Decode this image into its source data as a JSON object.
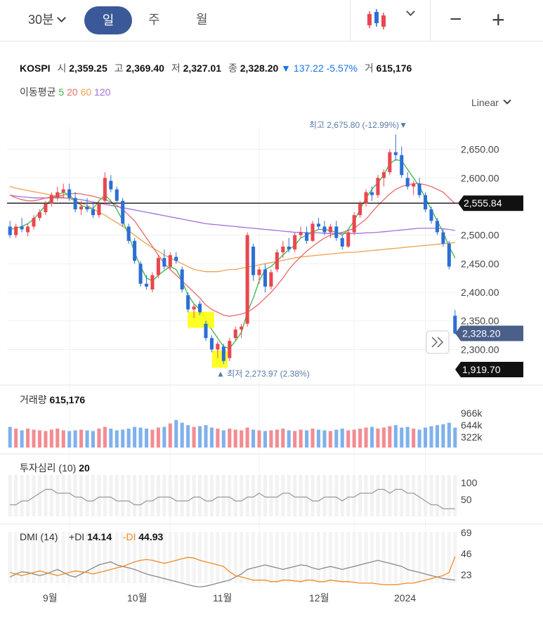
{
  "toolbar": {
    "timeframe": "30분",
    "tabs": [
      "일",
      "주",
      "월"
    ],
    "active_tab": "일",
    "chart_icon": "candlestick-icon",
    "zoom_out": "−",
    "zoom_in": "+"
  },
  "quote": {
    "symbol": "KOSPI",
    "open_label": "시",
    "open": "2,359.25",
    "high_label": "고",
    "high": "2,369.40",
    "low_label": "저",
    "low": "2,327.01",
    "close_label": "종",
    "close": "2,328.20",
    "change_arrow": "▼",
    "change": "137.22",
    "change_pct": "-5.57%",
    "volume_label": "거",
    "volume": "615,176"
  },
  "moving_average": {
    "label": "이동평균",
    "periods": [
      {
        "value": "5",
        "color": "#3bb54a"
      },
      {
        "value": "20",
        "color": "#e86a6a"
      },
      {
        "value": "60",
        "color": "#f0a050"
      },
      {
        "value": "120",
        "color": "#a070e0"
      }
    ]
  },
  "scale_mode": "Linear",
  "price_axis": {
    "ticks": [
      "2,650.00",
      "2,600.00",
      "2,500.00",
      "2,450.00",
      "2,400.00",
      "2,350.00",
      "2,300.00"
    ],
    "hline_value": "2,555.84",
    "current_value": "2,328.20",
    "low_marker": "1,919.70"
  },
  "annotations": {
    "high": "최고 2,675.80 (-12.99%)",
    "low": "최저 2,273.97 (2.38%)"
  },
  "volume_panel": {
    "label": "거래량",
    "value": "615,176",
    "ticks": [
      "966k",
      "644k",
      "322k"
    ]
  },
  "psychology_panel": {
    "label": "투자심리 (10)",
    "value": "20",
    "ticks": [
      "100",
      "50"
    ]
  },
  "dmi_panel": {
    "label": "DMI (14)",
    "plus_label": "+DI",
    "plus_value": "14.14",
    "minus_label": "-DI",
    "minus_value": "44.93",
    "ticks": [
      "69",
      "46",
      "23"
    ]
  },
  "x_axis": [
    "9월",
    "10월",
    "11월",
    "12월",
    "2024"
  ],
  "colors": {
    "up": "#e8474e",
    "down": "#2b6fd6",
    "accent": "#3b5998",
    "ma5": "#3bb54a",
    "ma20": "#e86a6a",
    "ma60": "#f0a050",
    "ma120": "#a070e0",
    "vol_up": "#f28c91",
    "vol_down": "#7fb1ec"
  },
  "chart_data": {
    "type": "candlestick",
    "ylim": [
      2260,
      2690
    ],
    "hline": 2555.84,
    "candles": [
      [
        2515,
        2525,
        2495,
        2500
      ],
      [
        2500,
        2520,
        2495,
        2515
      ],
      [
        2515,
        2530,
        2505,
        2510
      ],
      [
        2505,
        2520,
        2498,
        2515
      ],
      [
        2515,
        2535,
        2510,
        2530
      ],
      [
        2530,
        2545,
        2525,
        2540
      ],
      [
        2540,
        2560,
        2535,
        2555
      ],
      [
        2555,
        2575,
        2550,
        2570
      ],
      [
        2565,
        2585,
        2560,
        2575
      ],
      [
        2575,
        2590,
        2565,
        2580
      ],
      [
        2580,
        2590,
        2560,
        2565
      ],
      [
        2565,
        2575,
        2540,
        2545
      ],
      [
        2545,
        2560,
        2535,
        2550
      ],
      [
        2550,
        2565,
        2540,
        2545
      ],
      [
        2545,
        2555,
        2530,
        2535
      ],
      [
        2535,
        2560,
        2530,
        2555
      ],
      [
        2560,
        2610,
        2555,
        2600
      ],
      [
        2595,
        2605,
        2575,
        2580
      ],
      [
        2580,
        2585,
        2555,
        2560
      ],
      [
        2560,
        2565,
        2515,
        2520
      ],
      [
        2515,
        2520,
        2485,
        2490
      ],
      [
        2490,
        2495,
        2450,
        2455
      ],
      [
        2450,
        2455,
        2410,
        2415
      ],
      [
        2415,
        2430,
        2405,
        2410
      ],
      [
        2405,
        2435,
        2400,
        2430
      ],
      [
        2430,
        2465,
        2425,
        2460
      ],
      [
        2460,
        2475,
        2440,
        2445
      ],
      [
        2445,
        2470,
        2440,
        2465
      ],
      [
        2462,
        2470,
        2450,
        2455
      ],
      [
        2440,
        2445,
        2400,
        2405
      ],
      [
        2395,
        2400,
        2365,
        2370
      ],
      [
        2370,
        2380,
        2355,
        2375
      ],
      [
        2380,
        2385,
        2360,
        2365
      ],
      [
        2345,
        2350,
        2315,
        2320
      ],
      [
        2320,
        2325,
        2295,
        2300
      ],
      [
        2300,
        2315,
        2285,
        2310
      ],
      [
        2305,
        2310,
        2275,
        2280
      ],
      [
        2285,
        2320,
        2280,
        2315
      ],
      [
        2320,
        2340,
        2315,
        2335
      ],
      [
        2335,
        2345,
        2320,
        2340
      ],
      [
        2345,
        2505,
        2340,
        2500
      ],
      [
        2480,
        2485,
        2420,
        2430
      ],
      [
        2430,
        2445,
        2415,
        2440
      ],
      [
        2440,
        2450,
        2400,
        2410
      ],
      [
        2410,
        2440,
        2405,
        2435
      ],
      [
        2440,
        2475,
        2435,
        2470
      ],
      [
        2470,
        2490,
        2460,
        2480
      ],
      [
        2480,
        2495,
        2470,
        2475
      ],
      [
        2475,
        2505,
        2470,
        2500
      ],
      [
        2500,
        2515,
        2495,
        2505
      ],
      [
        2505,
        2515,
        2485,
        2490
      ],
      [
        2490,
        2525,
        2488,
        2520
      ],
      [
        2520,
        2530,
        2510,
        2515
      ],
      [
        2515,
        2525,
        2500,
        2505
      ],
      [
        2505,
        2520,
        2495,
        2515
      ],
      [
        2515,
        2525,
        2490,
        2495
      ],
      [
        2495,
        2500,
        2475,
        2480
      ],
      [
        2480,
        2510,
        2478,
        2505
      ],
      [
        2505,
        2540,
        2500,
        2535
      ],
      [
        2535,
        2560,
        2530,
        2555
      ],
      [
        2555,
        2580,
        2550,
        2575
      ],
      [
        2575,
        2585,
        2560,
        2570
      ],
      [
        2570,
        2605,
        2565,
        2600
      ],
      [
        2600,
        2615,
        2585,
        2610
      ],
      [
        2610,
        2650,
        2605,
        2645
      ],
      [
        2645,
        2676,
        2630,
        2640
      ],
      [
        2640,
        2655,
        2600,
        2605
      ],
      [
        2600,
        2610,
        2580,
        2585
      ],
      [
        2585,
        2595,
        2570,
        2590
      ],
      [
        2590,
        2600,
        2565,
        2570
      ],
      [
        2570,
        2575,
        2540,
        2545
      ],
      [
        2545,
        2550,
        2520,
        2525
      ],
      [
        2525,
        2530,
        2500,
        2505
      ],
      [
        2505,
        2510,
        2480,
        2485
      ],
      [
        2485,
        2490,
        2440,
        2445
      ],
      [
        2359,
        2369,
        2327,
        2328
      ]
    ],
    "ma5": [
      2510,
      2512,
      2515,
      2520,
      2528,
      2540,
      2552,
      2563,
      2570,
      2575,
      2570,
      2560,
      2552,
      2548,
      2546,
      2560,
      2570,
      2560,
      2545,
      2525,
      2500,
      2470,
      2445,
      2425,
      2420,
      2430,
      2438,
      2445,
      2440,
      2420,
      2395,
      2380,
      2370,
      2352,
      2335,
      2320,
      2305,
      2302,
      2315,
      2330,
      2365,
      2390,
      2420,
      2440,
      2445,
      2455,
      2465,
      2475,
      2482,
      2495,
      2500,
      2505,
      2510,
      2510,
      2508,
      2505,
      2500,
      2510,
      2525,
      2545,
      2565,
      2580,
      2592,
      2605,
      2625,
      2632,
      2630,
      2615,
      2600,
      2585,
      2565,
      2545,
      2525,
      2505,
      2480,
      2460
    ],
    "ma20": [
      2570,
      2565,
      2562,
      2560,
      2560,
      2562,
      2565,
      2567,
      2568,
      2570,
      2572,
      2573,
      2572,
      2570,
      2568,
      2565,
      2562,
      2558,
      2552,
      2545,
      2535,
      2525,
      2510,
      2495,
      2480,
      2465,
      2450,
      2440,
      2430,
      2420,
      2410,
      2400,
      2390,
      2378,
      2370,
      2365,
      2360,
      2358,
      2360,
      2362,
      2365,
      2372,
      2380,
      2390,
      2400,
      2412,
      2425,
      2440,
      2452,
      2462,
      2472,
      2480,
      2488,
      2495,
      2500,
      2503,
      2505,
      2508,
      2512,
      2520,
      2528,
      2540,
      2552,
      2562,
      2572,
      2580,
      2585,
      2588,
      2590,
      2590,
      2588,
      2585,
      2580,
      2575,
      2565,
      2555
    ],
    "ma60": [
      2585,
      2582,
      2580,
      2578,
      2576,
      2574,
      2572,
      2570,
      2568,
      2566,
      2564,
      2560,
      2556,
      2552,
      2546,
      2540,
      2535,
      2528,
      2522,
      2515,
      2508,
      2500,
      2492,
      2485,
      2478,
      2472,
      2465,
      2460,
      2455,
      2450,
      2445,
      2440,
      2438,
      2436,
      2436,
      2436,
      2438,
      2440,
      2440,
      2442,
      2444,
      2446,
      2448,
      2450,
      2452,
      2454,
      2456,
      2458,
      2460,
      2462,
      2463,
      2464,
      2465,
      2466,
      2467,
      2468,
      2469,
      2470,
      2470,
      2471,
      2472,
      2473,
      2474,
      2475,
      2476,
      2477,
      2478,
      2479,
      2480,
      2481,
      2482,
      2483,
      2484,
      2485,
      2486,
      2487
    ],
    "ma120": [
      2570,
      2568,
      2567,
      2566,
      2565,
      2565,
      2565,
      2565,
      2565,
      2565,
      2564,
      2563,
      2562,
      2560,
      2558,
      2556,
      2554,
      2552,
      2550,
      2548,
      2546,
      2544,
      2542,
      2540,
      2538,
      2536,
      2534,
      2532,
      2530,
      2528,
      2526,
      2524,
      2522,
      2520,
      2519,
      2518,
      2517,
      2516,
      2515,
      2514,
      2513,
      2512,
      2511,
      2510,
      2509,
      2508,
      2507,
      2506,
      2505,
      2505,
      2504,
      2504,
      2504,
      2503,
      2503,
      2503,
      2503,
      2503,
      2503,
      2503,
      2504,
      2504,
      2505,
      2506,
      2507,
      2508,
      2509,
      2510,
      2511,
      2512,
      2512,
      2512,
      2512,
      2511,
      2510,
      2508
    ],
    "volume": [
      60,
      55,
      50,
      55,
      52,
      50,
      48,
      52,
      55,
      50,
      48,
      50,
      52,
      50,
      48,
      55,
      60,
      55,
      50,
      52,
      55,
      60,
      58,
      55,
      52,
      58,
      60,
      70,
      80,
      72,
      65,
      60,
      62,
      65,
      58,
      55,
      50,
      55,
      52,
      50,
      58,
      52,
      50,
      48,
      50,
      52,
      55,
      50,
      48,
      52,
      50,
      55,
      52,
      50,
      48,
      52,
      55,
      50,
      52,
      55,
      58,
      60,
      55,
      58,
      62,
      65,
      58,
      60,
      55,
      52,
      58,
      62,
      65,
      68,
      72,
      58
    ],
    "psychology": [
      30,
      30,
      40,
      40,
      50,
      60,
      70,
      70,
      60,
      60,
      60,
      50,
      50,
      40,
      40,
      50,
      50,
      50,
      40,
      40,
      40,
      30,
      30,
      40,
      40,
      50,
      50,
      50,
      40,
      40,
      40,
      50,
      50,
      40,
      40,
      50,
      50,
      50,
      40,
      40,
      50,
      50,
      60,
      50,
      50,
      50,
      60,
      60,
      50,
      50,
      50,
      40,
      40,
      50,
      50,
      50,
      40,
      50,
      50,
      60,
      60,
      60,
      70,
      70,
      60,
      70,
      70,
      60,
      60,
      50,
      40,
      30,
      30,
      20,
      20,
      20
    ],
    "plus_di": [
      18,
      22,
      25,
      24,
      22,
      20,
      22,
      25,
      28,
      24,
      20,
      18,
      22,
      26,
      30,
      34,
      36,
      38,
      34,
      32,
      30,
      28,
      25,
      22,
      20,
      18,
      16,
      14,
      12,
      10,
      8,
      6,
      5,
      6,
      8,
      10,
      12,
      14,
      18,
      22,
      28,
      30,
      32,
      34,
      32,
      30,
      28,
      30,
      32,
      34,
      33,
      30,
      28,
      30,
      32,
      30,
      28,
      30,
      32,
      34,
      36,
      38,
      40,
      38,
      36,
      34,
      32,
      28,
      26,
      24,
      22,
      20,
      18,
      16,
      15,
      14
    ],
    "minus_di": [
      24,
      22,
      20,
      22,
      24,
      26,
      24,
      22,
      20,
      22,
      24,
      26,
      25,
      24,
      22,
      24,
      26,
      28,
      30,
      32,
      35,
      38,
      40,
      41,
      40,
      38,
      36,
      38,
      40,
      42,
      44,
      43,
      40,
      38,
      36,
      34,
      32,
      25,
      20,
      18,
      16,
      14,
      14,
      14,
      12,
      12,
      14,
      14,
      13,
      12,
      14,
      14,
      12,
      12,
      14,
      13,
      12,
      12,
      11,
      10,
      10,
      10,
      9,
      8,
      8,
      8,
      9,
      10,
      10,
      12,
      14,
      16,
      18,
      20,
      24,
      44.93
    ]
  }
}
